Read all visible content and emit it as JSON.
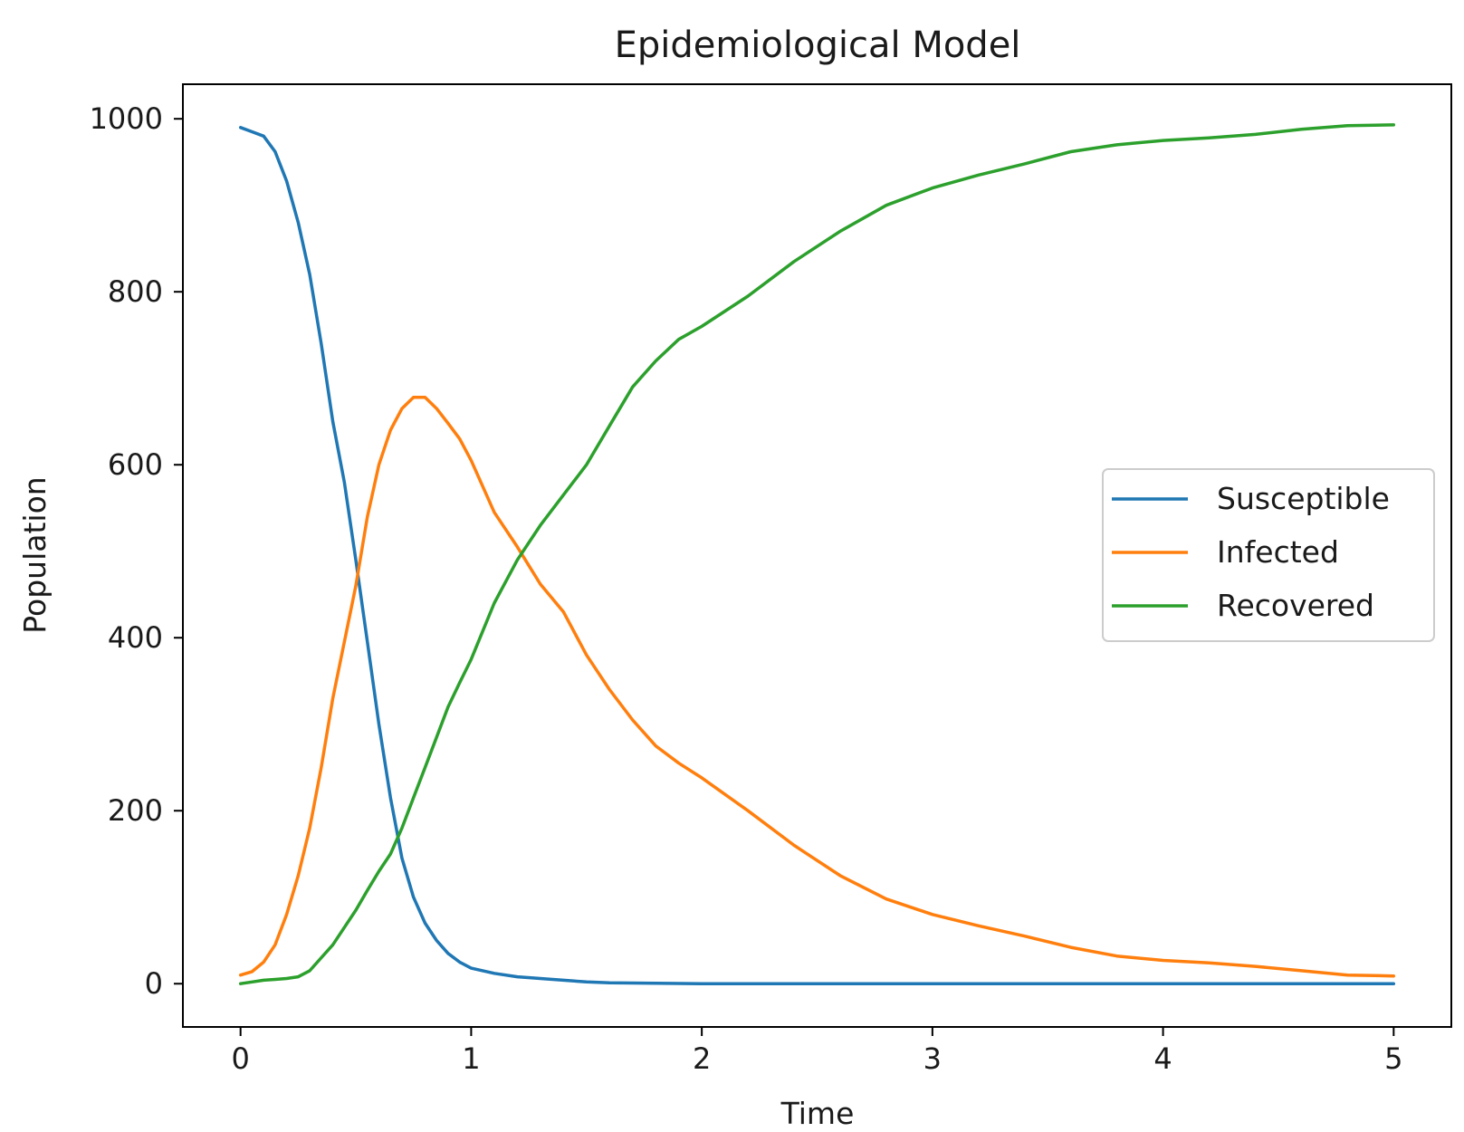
{
  "chart_data": {
    "type": "line",
    "title": "Epidemiological Model",
    "xlabel": "Time",
    "ylabel": "Population",
    "xlim": [
      -0.25,
      5.25
    ],
    "ylim": [
      -50,
      1040
    ],
    "x_ticks": [
      0,
      1,
      2,
      3,
      4,
      5
    ],
    "x_tick_labels": [
      "0",
      "1",
      "2",
      "3",
      "4",
      "5"
    ],
    "y_ticks": [
      0,
      200,
      400,
      600,
      800,
      1000
    ],
    "y_tick_labels": [
      "0",
      "200",
      "400",
      "600",
      "800",
      "1000"
    ],
    "grid": false,
    "legend_position": "center-right",
    "series": [
      {
        "name": "Susceptible",
        "color": "#1f77b4",
        "points": [
          [
            0,
            990
          ],
          [
            0.05,
            985
          ],
          [
            0.1,
            980
          ],
          [
            0.15,
            962
          ],
          [
            0.2,
            928
          ],
          [
            0.25,
            880
          ],
          [
            0.3,
            820
          ],
          [
            0.35,
            740
          ],
          [
            0.4,
            650
          ],
          [
            0.45,
            580
          ],
          [
            0.5,
            490
          ],
          [
            0.55,
            395
          ],
          [
            0.6,
            300
          ],
          [
            0.65,
            215
          ],
          [
            0.7,
            145
          ],
          [
            0.75,
            100
          ],
          [
            0.8,
            70
          ],
          [
            0.85,
            50
          ],
          [
            0.9,
            35
          ],
          [
            0.95,
            25
          ],
          [
            1.0,
            18
          ],
          [
            1.1,
            12
          ],
          [
            1.2,
            8
          ],
          [
            1.3,
            6
          ],
          [
            1.4,
            4
          ],
          [
            1.5,
            2
          ],
          [
            1.6,
            1
          ],
          [
            2.0,
            0
          ],
          [
            3.0,
            0
          ],
          [
            4.0,
            0
          ],
          [
            5.0,
            0
          ]
        ]
      },
      {
        "name": "Infected",
        "color": "#ff7f0e",
        "points": [
          [
            0,
            10
          ],
          [
            0.05,
            14
          ],
          [
            0.1,
            25
          ],
          [
            0.15,
            45
          ],
          [
            0.2,
            80
          ],
          [
            0.25,
            125
          ],
          [
            0.3,
            180
          ],
          [
            0.35,
            250
          ],
          [
            0.4,
            330
          ],
          [
            0.45,
            395
          ],
          [
            0.5,
            460
          ],
          [
            0.55,
            540
          ],
          [
            0.6,
            600
          ],
          [
            0.65,
            640
          ],
          [
            0.7,
            665
          ],
          [
            0.75,
            678
          ],
          [
            0.8,
            678
          ],
          [
            0.85,
            665
          ],
          [
            0.9,
            648
          ],
          [
            0.95,
            630
          ],
          [
            1.0,
            605
          ],
          [
            1.1,
            545
          ],
          [
            1.2,
            505
          ],
          [
            1.3,
            462
          ],
          [
            1.4,
            430
          ],
          [
            1.5,
            380
          ],
          [
            1.6,
            340
          ],
          [
            1.7,
            305
          ],
          [
            1.8,
            275
          ],
          [
            1.9,
            255
          ],
          [
            2.0,
            238
          ],
          [
            2.2,
            200
          ],
          [
            2.4,
            160
          ],
          [
            2.6,
            125
          ],
          [
            2.8,
            98
          ],
          [
            3.0,
            80
          ],
          [
            3.2,
            67
          ],
          [
            3.4,
            55
          ],
          [
            3.6,
            42
          ],
          [
            3.8,
            32
          ],
          [
            4.0,
            27
          ],
          [
            4.2,
            24
          ],
          [
            4.4,
            20
          ],
          [
            4.6,
            15
          ],
          [
            4.8,
            10
          ],
          [
            5.0,
            9
          ]
        ]
      },
      {
        "name": "Recovered",
        "color": "#2ca02c",
        "points": [
          [
            0,
            0
          ],
          [
            0.05,
            2
          ],
          [
            0.1,
            4
          ],
          [
            0.15,
            5
          ],
          [
            0.2,
            6
          ],
          [
            0.25,
            8
          ],
          [
            0.3,
            15
          ],
          [
            0.35,
            30
          ],
          [
            0.4,
            45
          ],
          [
            0.45,
            65
          ],
          [
            0.5,
            85
          ],
          [
            0.55,
            108
          ],
          [
            0.6,
            130
          ],
          [
            0.65,
            150
          ],
          [
            0.7,
            180
          ],
          [
            0.75,
            215
          ],
          [
            0.8,
            250
          ],
          [
            0.85,
            285
          ],
          [
            0.9,
            320
          ],
          [
            0.95,
            348
          ],
          [
            1.0,
            375
          ],
          [
            1.1,
            440
          ],
          [
            1.2,
            490
          ],
          [
            1.3,
            530
          ],
          [
            1.4,
            565
          ],
          [
            1.5,
            600
          ],
          [
            1.6,
            645
          ],
          [
            1.7,
            690
          ],
          [
            1.8,
            720
          ],
          [
            1.9,
            745
          ],
          [
            2.0,
            760
          ],
          [
            2.2,
            795
          ],
          [
            2.4,
            835
          ],
          [
            2.6,
            870
          ],
          [
            2.8,
            900
          ],
          [
            3.0,
            920
          ],
          [
            3.2,
            935
          ],
          [
            3.4,
            948
          ],
          [
            3.6,
            962
          ],
          [
            3.8,
            970
          ],
          [
            4.0,
            975
          ],
          [
            4.2,
            978
          ],
          [
            4.4,
            982
          ],
          [
            4.6,
            988
          ],
          [
            4.8,
            992
          ],
          [
            5.0,
            993
          ]
        ]
      }
    ]
  }
}
